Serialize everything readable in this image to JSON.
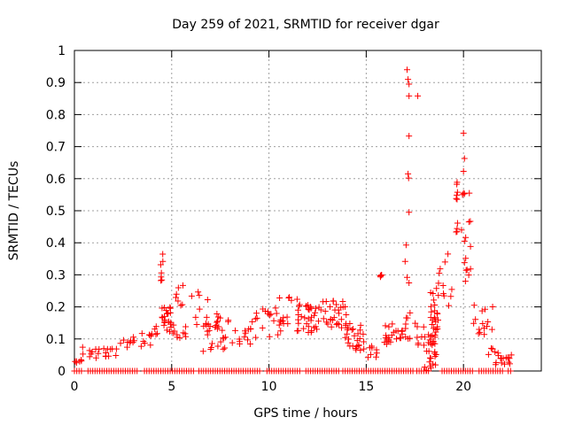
{
  "chart_data": {
    "type": "scatter",
    "title": "Day 259 of 2021, SRMTID for receiver dgar",
    "xlabel": "GPS time / hours",
    "ylabel": "SRMTID / TECUs",
    "xlim": [
      0,
      24
    ],
    "ylim": [
      0,
      1
    ],
    "xticks": [
      0,
      5,
      10,
      15,
      20
    ],
    "yticks": [
      0,
      0.1,
      0.2,
      0.3,
      0.4,
      0.5,
      0.6,
      0.7,
      0.8,
      0.9,
      1
    ],
    "grid": true,
    "marker": "plus",
    "color": "#ff0000",
    "series": [
      {
        "name": "SRMTID",
        "clusters": [
          {
            "x": [
              0.0,
              0.4
            ],
            "y": [
              0.02,
              0.04
            ],
            "n": 6
          },
          {
            "x": [
              0.4,
              1.0
            ],
            "y": [
              0.04,
              0.09
            ],
            "n": 6
          },
          {
            "x": [
              1.0,
              2.2
            ],
            "y": [
              0.04,
              0.07
            ],
            "n": 14
          },
          {
            "x": [
              2.2,
              4.0
            ],
            "y": [
              0.07,
              0.12
            ],
            "n": 14
          },
          {
            "x": [
              3.6,
              4.3
            ],
            "y": [
              0.1,
              0.15
            ],
            "n": 8
          },
          {
            "x": [
              4.4,
              4.55
            ],
            "y": [
              0.28,
              0.37
            ],
            "n": 7
          },
          {
            "x": [
              4.5,
              5.0
            ],
            "y": [
              0.12,
              0.2
            ],
            "n": 22
          },
          {
            "x": [
              5.2,
              5.6
            ],
            "y": [
              0.2,
              0.27
            ],
            "n": 7
          },
          {
            "x": [
              5.0,
              5.8
            ],
            "y": [
              0.1,
              0.16
            ],
            "n": 10
          },
          {
            "x": [
              6.0,
              7.0
            ],
            "y": [
              0.12,
              0.25
            ],
            "n": 9
          },
          {
            "x": [
              6.5,
              8.0
            ],
            "y": [
              0.06,
              0.18
            ],
            "n": 30
          },
          {
            "x": [
              8.0,
              9.2
            ],
            "y": [
              0.08,
              0.16
            ],
            "n": 14
          },
          {
            "x": [
              9.2,
              10.5
            ],
            "y": [
              0.1,
              0.2
            ],
            "n": 16
          },
          {
            "x": [
              10.5,
              11.5
            ],
            "y": [
              0.12,
              0.23
            ],
            "n": 18
          },
          {
            "x": [
              11.5,
              12.5
            ],
            "y": [
              0.12,
              0.22
            ],
            "n": 30
          },
          {
            "x": [
              12.5,
              13.5
            ],
            "y": [
              0.13,
              0.22
            ],
            "n": 20
          },
          {
            "x": [
              13.5,
              14.0
            ],
            "y": [
              0.1,
              0.22
            ],
            "n": 14
          },
          {
            "x": [
              14.0,
              14.9
            ],
            "y": [
              0.06,
              0.15
            ],
            "n": 26
          },
          {
            "x": [
              14.9,
              15.6
            ],
            "y": [
              0.04,
              0.08
            ],
            "n": 8
          },
          {
            "x": [
              15.7,
              15.8
            ],
            "y": [
              0.28,
              0.3
            ],
            "n": 5
          },
          {
            "x": [
              15.9,
              16.9
            ],
            "y": [
              0.08,
              0.15
            ],
            "n": 22
          },
          {
            "x": [
              17.0,
              17.3
            ],
            "y": [
              0.1,
              0.2
            ],
            "n": 8
          },
          {
            "x": [
              17.5,
              18.0
            ],
            "y": [
              0.08,
              0.15
            ],
            "n": 8
          },
          {
            "x": [
              18.0,
              18.6
            ],
            "y": [
              0.0,
              0.12
            ],
            "n": 28
          },
          {
            "x": [
              18.3,
              18.7
            ],
            "y": [
              0.12,
              0.28
            ],
            "n": 22
          },
          {
            "x": [
              18.7,
              19.4
            ],
            "y": [
              0.2,
              0.32
            ],
            "n": 10
          },
          {
            "x": [
              19.6,
              19.7
            ],
            "y": [
              0.42,
              0.49
            ],
            "n": 4
          },
          {
            "x": [
              19.6,
              19.7
            ],
            "y": [
              0.53,
              0.59
            ],
            "n": 6
          },
          {
            "x": [
              20.0,
              20.4
            ],
            "y": [
              0.26,
              0.48
            ],
            "n": 8
          },
          {
            "x": [
              20.5,
              21.5
            ],
            "y": [
              0.04,
              0.21
            ],
            "n": 18
          },
          {
            "x": [
              21.5,
              22.5
            ],
            "y": [
              0.02,
              0.06
            ],
            "n": 16
          }
        ],
        "points": [
          [
            17.1,
            0.94
          ],
          [
            17.15,
            0.91
          ],
          [
            17.2,
            0.895
          ],
          [
            17.2,
            0.858
          ],
          [
            17.2,
            0.733
          ],
          [
            17.65,
            0.858
          ],
          [
            17.15,
            0.615
          ],
          [
            17.18,
            0.602
          ],
          [
            17.2,
            0.495
          ],
          [
            17.05,
            0.393
          ],
          [
            17.0,
            0.342
          ],
          [
            17.1,
            0.292
          ],
          [
            17.2,
            0.275
          ],
          [
            19.2,
            0.365
          ],
          [
            19.05,
            0.34
          ],
          [
            20.0,
            0.742
          ],
          [
            20.05,
            0.663
          ],
          [
            20.0,
            0.623
          ],
          [
            20.05,
            0.553
          ],
          [
            20.0,
            0.555
          ],
          [
            20.3,
            0.555
          ],
          [
            19.9,
            0.44
          ],
          [
            20.05,
            0.405
          ],
          [
            20.05,
            0.338
          ],
          [
            20.1,
            0.28
          ],
          [
            20.35,
            0.467
          ],
          [
            19.95,
            0.55
          ],
          [
            20.55,
            0.205
          ]
        ],
        "zero_runs": [
          [
            0.0,
            0.4
          ],
          [
            0.7,
            3.3
          ],
          [
            3.6,
            6.2
          ],
          [
            6.4,
            9.6
          ],
          [
            9.9,
            11.6
          ],
          [
            11.9,
            13.6
          ],
          [
            13.8,
            17.4
          ],
          [
            17.6,
            18.2
          ],
          [
            18.9,
            20.5
          ],
          [
            20.8,
            22.1
          ],
          [
            22.3,
            22.5
          ]
        ]
      }
    ]
  }
}
